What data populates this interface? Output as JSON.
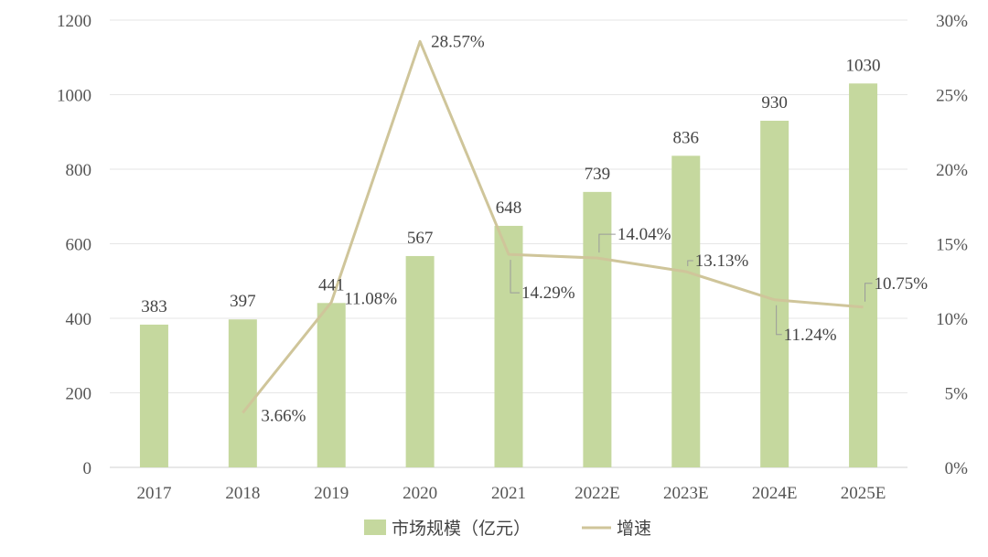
{
  "chart_data": {
    "type": "bar",
    "categories": [
      "2017",
      "2018",
      "2019",
      "2020",
      "2021",
      "2022E",
      "2023E",
      "2024E",
      "2025E"
    ],
    "series": [
      {
        "name": "市场规模（亿元）",
        "type": "bar",
        "axis": "left",
        "color": "#c5d89e",
        "values": [
          383,
          397,
          441,
          567,
          648,
          739,
          836,
          930,
          1030
        ],
        "labels": [
          "383",
          "397",
          "441",
          "567",
          "648",
          "739",
          "836",
          "930",
          "1030"
        ]
      },
      {
        "name": "增速",
        "type": "line",
        "axis": "right",
        "color": "#cfc59a",
        "values": [
          null,
          3.66,
          11.08,
          28.57,
          14.29,
          14.04,
          13.13,
          11.24,
          10.75
        ],
        "labels": [
          "",
          "3.66%",
          "11.08%",
          "28.57%",
          "14.29%",
          "14.04%",
          "13.13%",
          "11.24%",
          "10.75%"
        ]
      }
    ],
    "y_left": {
      "range": [
        0,
        1200
      ],
      "ticks": [
        "0",
        "200",
        "400",
        "600",
        "800",
        "1000",
        "1200"
      ]
    },
    "y_right": {
      "range": [
        0,
        30
      ],
      "ticks": [
        "0%",
        "5%",
        "10%",
        "15%",
        "20%",
        "25%",
        "30%"
      ]
    },
    "grid": true,
    "legend_position": "bottom-center",
    "legend": [
      "市场规模（亿元）",
      "增速"
    ],
    "title": "",
    "xlabel": "",
    "ylabel": ""
  }
}
